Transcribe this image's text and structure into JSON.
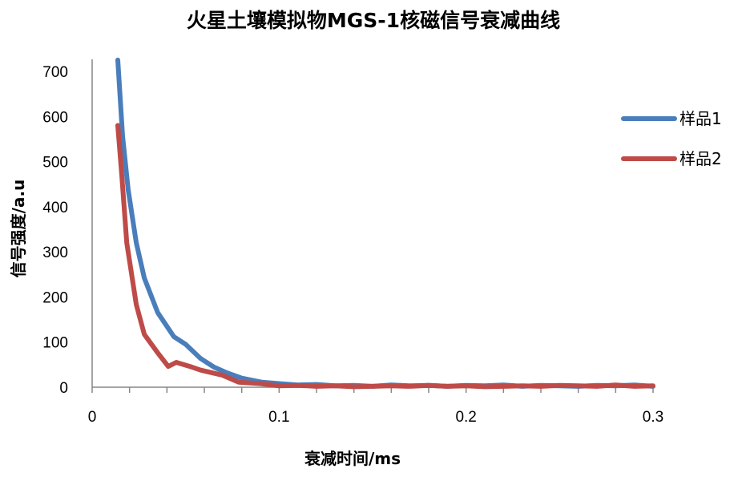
{
  "chart_data": {
    "type": "line",
    "title": "火星土壤模拟物MGS-1核磁信号衰减曲线",
    "xlabel": "衰减时间/ms",
    "ylabel": "信号强度/a.u",
    "xlim": [
      0,
      0.3
    ],
    "ylim": [
      0,
      700
    ],
    "xticks": [
      "0",
      "0.1",
      "0.2",
      "0.3"
    ],
    "yticks": [
      "0",
      "100",
      "200",
      "300",
      "400",
      "500",
      "600",
      "700"
    ],
    "grid": false,
    "legend_position": "right",
    "series": [
      {
        "name": "样品1",
        "color": "#4a7ebb",
        "x": [
          0.0137,
          0.0163,
          0.0193,
          0.0236,
          0.0279,
          0.0351,
          0.0437,
          0.05,
          0.0579,
          0.065,
          0.072,
          0.08,
          0.0909,
          0.1,
          0.11,
          0.12,
          0.13,
          0.14,
          0.15,
          0.16,
          0.17,
          0.18,
          0.19,
          0.2,
          0.21,
          0.22,
          0.23,
          0.24,
          0.25,
          0.26,
          0.27,
          0.28,
          0.29,
          0.3
        ],
        "y": [
          725,
          556,
          437,
          320,
          242,
          165,
          112,
          95,
          64,
          45,
          32,
          20,
          11,
          8,
          5,
          6,
          3,
          4,
          2,
          5,
          3,
          4,
          2,
          4,
          3,
          5,
          2,
          4,
          3,
          2,
          4,
          3,
          5,
          2
        ]
      },
      {
        "name": "样品2",
        "color": "#be4b48",
        "x": [
          0.0137,
          0.0159,
          0.0185,
          0.0236,
          0.0279,
          0.0351,
          0.0407,
          0.045,
          0.0523,
          0.0579,
          0.0694,
          0.0784,
          0.09,
          0.1,
          0.11,
          0.12,
          0.13,
          0.14,
          0.15,
          0.16,
          0.17,
          0.18,
          0.19,
          0.2,
          0.21,
          0.22,
          0.23,
          0.24,
          0.25,
          0.26,
          0.27,
          0.28,
          0.29,
          0.3
        ],
        "y": [
          580,
          467,
          320,
          183,
          117,
          76,
          46,
          55,
          46,
          38,
          27,
          11,
          8,
          3,
          4,
          2,
          3,
          1,
          2,
          3,
          2,
          4,
          2,
          3,
          1,
          2,
          3,
          2,
          4,
          3,
          2,
          5,
          2,
          3
        ]
      }
    ]
  }
}
